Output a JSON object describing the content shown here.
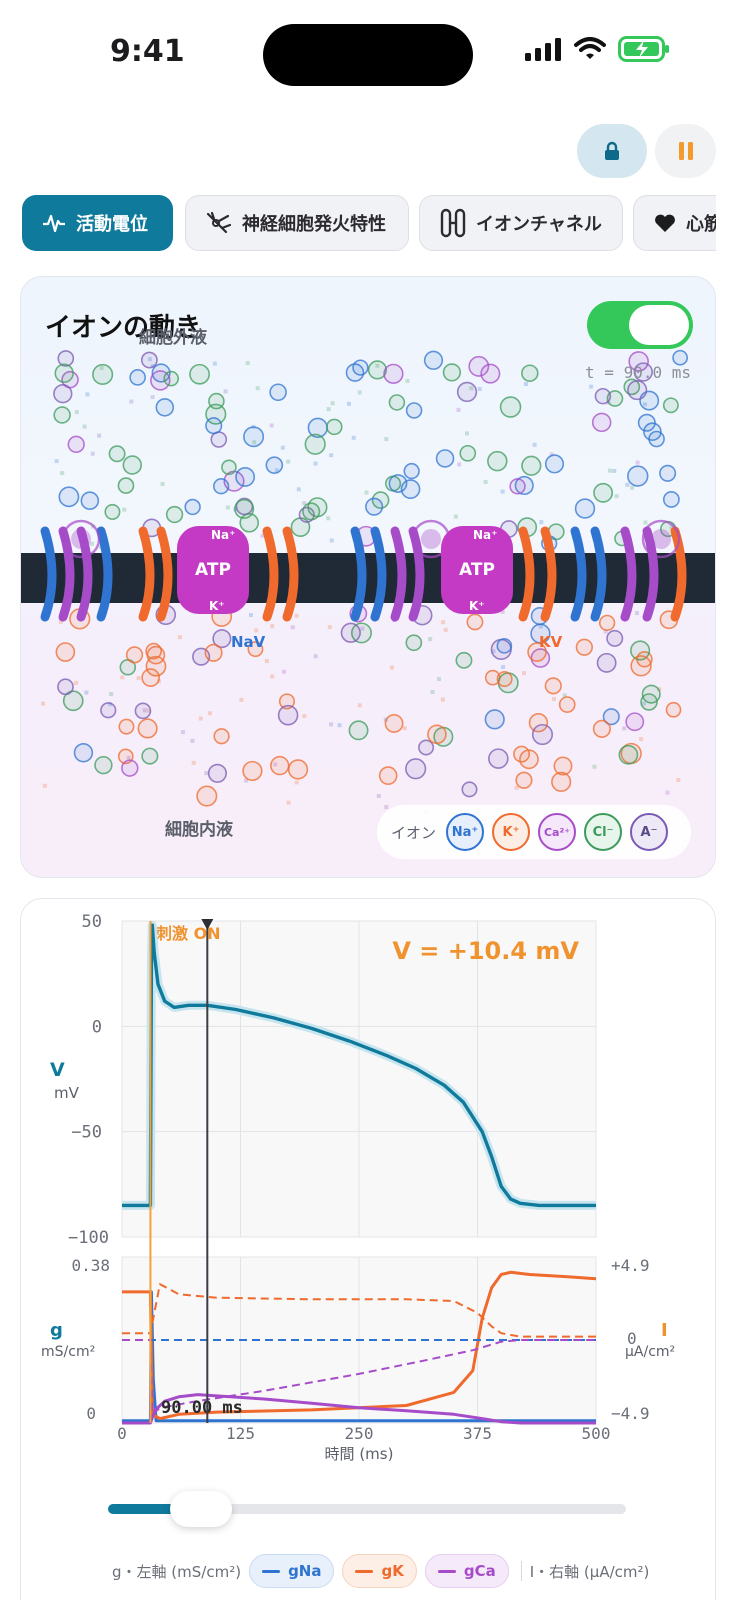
{
  "status_bar": {
    "time": "9:41"
  },
  "colors": {
    "accent": "#0f7a9c",
    "na": "#2f74d0",
    "k": "#ef6a2c",
    "ca": "#a64cc8",
    "cl": "#3c9b5b",
    "anion": "#7a5ab2",
    "atp": "#c43ac4",
    "stim": "#f3a13a",
    "toggle_on": "#34c759"
  },
  "header": {
    "lock_icon": "lock-icon",
    "pause_icon": "pause-icon"
  },
  "tabs": [
    {
      "label": "活動電位",
      "icon": "waveform-icon",
      "active": true
    },
    {
      "label": "神経細胞発火特性",
      "icon": "neuron-icon",
      "active": false
    },
    {
      "label": "イオンチャネル",
      "icon": "channel-icon",
      "active": false
    },
    {
      "label": "心筋",
      "icon": "heart-icon",
      "active": false
    }
  ],
  "ion_view": {
    "title": "イオンの動き",
    "toggle_on": true,
    "extracellular_label": "細胞外液",
    "intracellular_label": "細胞内液",
    "time_label": "t = 90.0 ms",
    "atp_label": "ATP",
    "pump_na": "Na⁺",
    "pump_k": "K⁺",
    "channel_nav": "NaV",
    "channel_kv": "KV",
    "legend_label": "イオン",
    "legend_ions": [
      {
        "symbol": "Na⁺",
        "color": "#2f74d0"
      },
      {
        "symbol": "K⁺",
        "color": "#ef6a2c"
      },
      {
        "symbol": "Ca²⁺",
        "color": "#a64cc8"
      },
      {
        "symbol": "Cl⁻",
        "color": "#3c9b5b"
      },
      {
        "symbol": "A⁻",
        "color": "#7a5ab2"
      }
    ]
  },
  "chart_data": [
    {
      "type": "line",
      "title": "",
      "readout": "V = +10.4 mV",
      "stimulus_label": "刺激 ON",
      "stimulus_time": 30,
      "cursor_time": 90,
      "ylabel": "V",
      "yunit": "mV",
      "ylim": [
        -100,
        50
      ],
      "yticks": [
        "50",
        "0",
        "−50",
        "−100"
      ],
      "xlim": [
        0,
        500
      ],
      "grid": true,
      "series": [
        {
          "color": "#0f7a9c",
          "x": [
            0,
            28,
            30,
            31,
            32,
            34,
            38,
            45,
            55,
            70,
            90,
            120,
            160,
            200,
            240,
            280,
            310,
            340,
            360,
            380,
            390,
            400,
            410,
            420,
            440,
            470,
            500
          ],
          "y": [
            -85,
            -85,
            -85,
            30,
            48,
            35,
            20,
            12,
            9,
            10,
            10,
            8,
            4,
            -1,
            -7,
            -14,
            -20,
            -28,
            -36,
            -50,
            -62,
            -76,
            -82,
            -84,
            -85,
            -85,
            -85
          ]
        }
      ]
    },
    {
      "type": "line",
      "left_axis_label": "g",
      "left_axis_unit": "mS/cm²",
      "right_axis_label": "I",
      "right_axis_unit": "µA/cm²",
      "left_ylim": [
        0,
        0.38
      ],
      "left_ticks": [
        "0.38",
        "0"
      ],
      "right_ticks": [
        "+4.9",
        "0",
        "−4.9"
      ],
      "xlabel": "時間 (ms)",
      "xlim": [
        0,
        500
      ],
      "xticks": [
        "0",
        "125",
        "250",
        "375",
        "500"
      ],
      "time_readout": "90.00 ms",
      "series": [
        {
          "name": "gNa",
          "color": "#2f74d0",
          "style": "solid",
          "x": [
            0,
            30,
            31,
            33,
            36,
            500
          ],
          "y": [
            0.005,
            0.005,
            0.3,
            0.1,
            0.005,
            0.005
          ]
        },
        {
          "name": "gK",
          "color": "#ef6a2c",
          "style": "solid",
          "x": [
            0,
            30,
            32,
            40,
            60,
            100,
            200,
            300,
            350,
            370,
            380,
            390,
            400,
            410,
            430,
            470,
            500
          ],
          "y": [
            0.3,
            0.3,
            0.02,
            0.01,
            0.02,
            0.025,
            0.03,
            0.04,
            0.07,
            0.12,
            0.24,
            0.31,
            0.34,
            0.345,
            0.34,
            0.335,
            0.33
          ]
        },
        {
          "name": "gCa",
          "color": "#a64cc8",
          "style": "solid",
          "x": [
            0,
            30,
            35,
            45,
            60,
            80,
            100,
            150,
            200,
            250,
            300,
            350,
            380,
            400,
            420,
            500
          ],
          "y": [
            0.0,
            0.0,
            0.03,
            0.05,
            0.06,
            0.065,
            0.062,
            0.055,
            0.045,
            0.035,
            0.028,
            0.02,
            0.01,
            0.003,
            0.0,
            0.0
          ]
        },
        {
          "name": "INa",
          "color": "#2f74d0",
          "style": "dashed",
          "axis": "right",
          "x": [
            0,
            500
          ],
          "y": [
            0,
            0
          ]
        },
        {
          "name": "IK",
          "color": "#ef6a2c",
          "style": "dashed",
          "axis": "right",
          "x": [
            0,
            30,
            40,
            60,
            100,
            200,
            300,
            350,
            375,
            390,
            400,
            420,
            500
          ],
          "y": [
            0.4,
            0.4,
            3.3,
            2.7,
            2.5,
            2.4,
            2.4,
            2.3,
            1.6,
            0.8,
            0.4,
            0.2,
            0.2
          ]
        },
        {
          "name": "ICa",
          "color": "#a64cc8",
          "style": "dashed",
          "axis": "right",
          "x": [
            0,
            30,
            32,
            40,
            80,
            150,
            250,
            320,
            370,
            400,
            420,
            500
          ],
          "y": [
            0,
            0,
            -4.4,
            -4.0,
            -3.6,
            -3.0,
            -2.0,
            -1.2,
            -0.6,
            -0.1,
            0,
            0
          ]
        }
      ]
    }
  ],
  "slider": {
    "value": 0.18
  },
  "bottom_legend": {
    "left_axis": "g・左軸 (mS/cm²)",
    "items": [
      {
        "label": "gNa",
        "color": "#2f74d0"
      },
      {
        "label": "gK",
        "color": "#ef6a2c"
      },
      {
        "label": "gCa",
        "color": "#a64cc8"
      }
    ],
    "right_axis": "I・右軸 (µA/cm²)"
  }
}
